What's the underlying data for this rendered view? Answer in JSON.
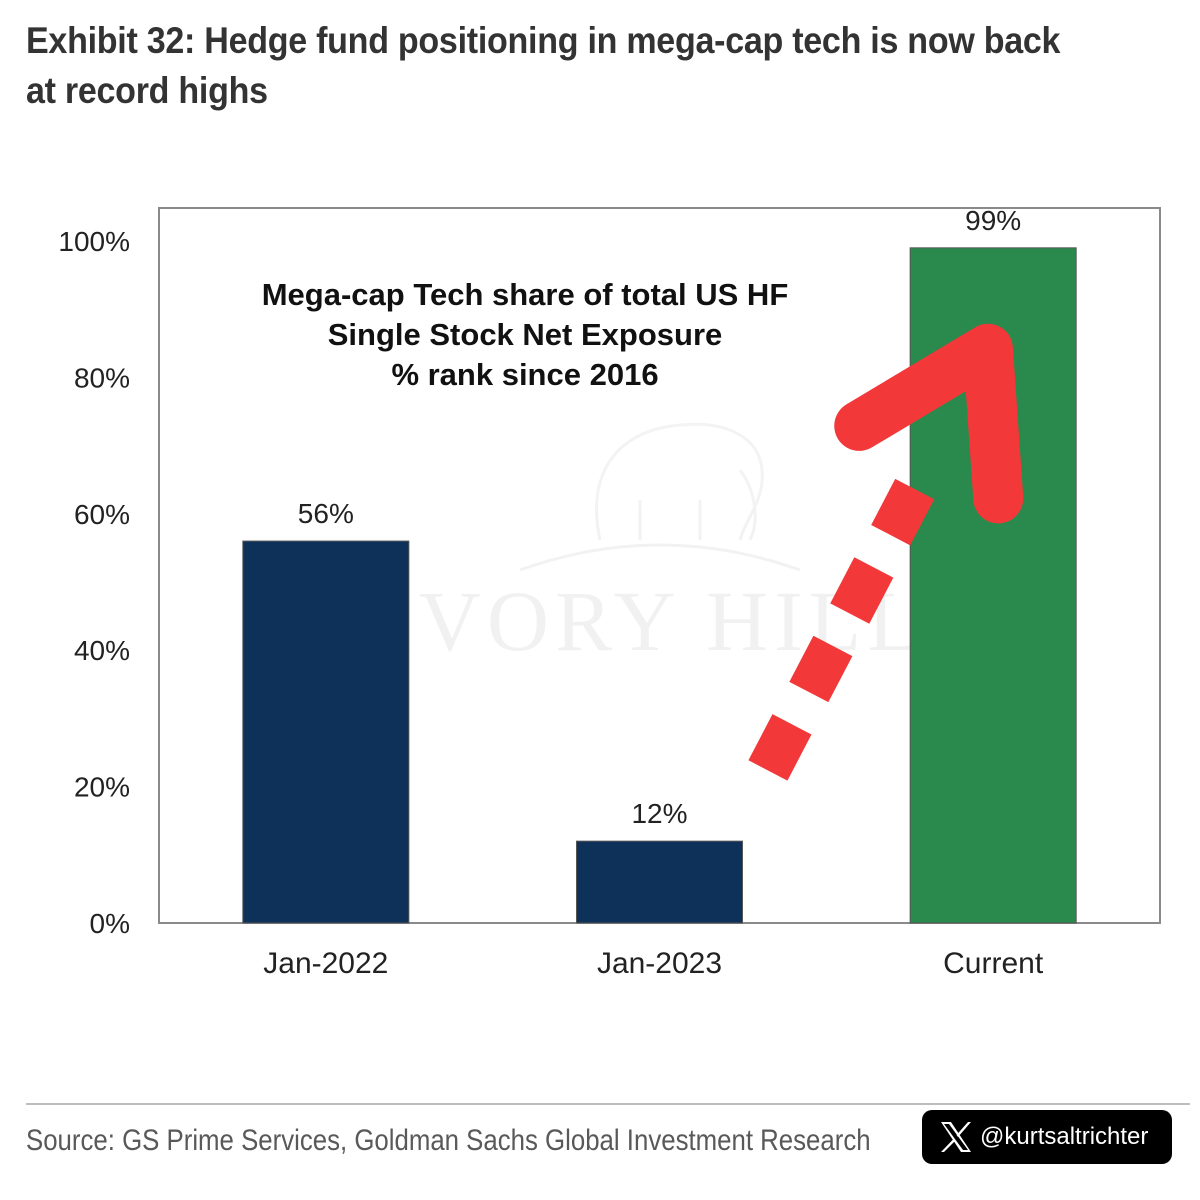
{
  "header": {
    "title": "Exhibit 32: Hedge fund positioning in mega-cap tech is now back at record highs"
  },
  "chart_data": {
    "type": "bar",
    "title_lines": [
      "Mega-cap Tech share of total US HF",
      "Single Stock Net Exposure",
      "% rank since 2016"
    ],
    "categories": [
      "Jan-2022",
      "Jan-2023",
      "Current"
    ],
    "values": [
      56,
      12,
      99
    ],
    "data_labels": [
      "56%",
      "12%",
      "99%"
    ],
    "bar_colors": [
      "#0e3159",
      "#0e3159",
      "#2a8a4d"
    ],
    "ylim": [
      0,
      105
    ],
    "yticks": [
      0,
      20,
      40,
      60,
      80,
      100
    ],
    "ytick_labels": [
      "0%",
      "20%",
      "40%",
      "60%",
      "80%",
      "100%"
    ],
    "grid": false,
    "annotation": {
      "type": "dashed-arrow",
      "color": "#f23838",
      "from_category": "Jan-2023",
      "to_category": "Current"
    },
    "watermark": "IVORY HILL"
  },
  "footer": {
    "source": "Source: GS Prime Services, Goldman Sachs Global Investment Research",
    "handle": "@kurtsaltrichter",
    "handle_icon": "x-logo-icon"
  }
}
